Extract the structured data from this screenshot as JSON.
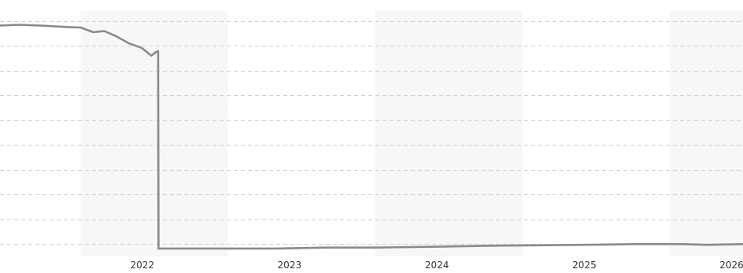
{
  "colors": {
    "background": "#ffffff",
    "band": "#f7f7f7",
    "grid": "#cfcfcf",
    "line": "#8a8a8a",
    "axis_text": "#333333"
  },
  "chart_data": {
    "type": "line",
    "title": "",
    "xlabel": "",
    "ylabel": "",
    "grid": true,
    "legend": "none",
    "x_ticks": [
      "2022",
      "2023",
      "2024",
      "2025",
      "2026"
    ],
    "x_range": [
      "2021-06-15",
      "2026-07-01"
    ],
    "shaded_years": [
      "2022",
      "2024",
      "2026"
    ],
    "y_ticks_shown": false,
    "y_range_relative": [
      0,
      100
    ],
    "series": [
      {
        "x": [
          "2021-06-15",
          "2021-08-01",
          "2021-10-01",
          "2021-12-01",
          "2022-01-01",
          "2022-02-01",
          "2022-03-01",
          "2022-04-01",
          "2022-05-01",
          "2022-06-01",
          "2022-06-25",
          "2022-07-05",
          "2022-07-12",
          "2022-07-13",
          "2022-09-01",
          "2023-01-01",
          "2023-05-01",
          "2023-09-01",
          "2024-01-01",
          "2024-06-01",
          "2024-10-01",
          "2025-02-01",
          "2025-06-01",
          "2025-10-01",
          "2026-02-01",
          "2026-04-01",
          "2026-07-01"
        ],
        "y": [
          96.5,
          96.8,
          96.4,
          95.8,
          95.6,
          93.6,
          94.1,
          91.7,
          88.8,
          86.9,
          83.5,
          84.9,
          85.5,
          0.7,
          0.7,
          0.7,
          0.7,
          1.1,
          1.1,
          1.5,
          1.9,
          2.1,
          2.3,
          2.6,
          2.6,
          2.3,
          2.6
        ]
      }
    ]
  }
}
